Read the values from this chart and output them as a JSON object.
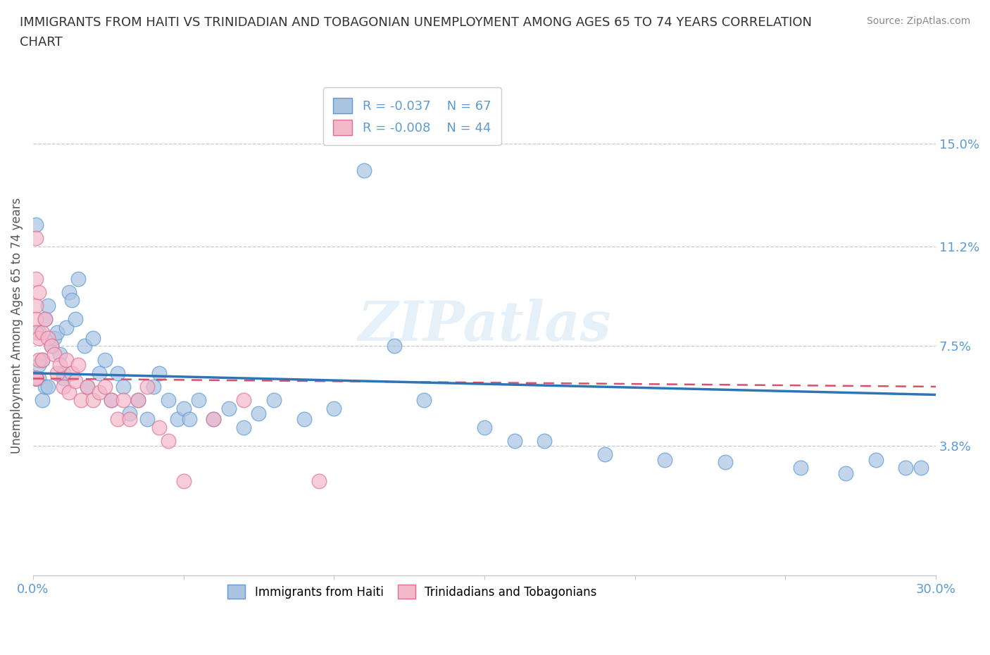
{
  "title": "IMMIGRANTS FROM HAITI VS TRINIDADIAN AND TOBAGONIAN UNEMPLOYMENT AMONG AGES 65 TO 74 YEARS CORRELATION\nCHART",
  "source": "Source: ZipAtlas.com",
  "ylabel": "Unemployment Among Ages 65 to 74 years",
  "xlim": [
    0.0,
    0.3
  ],
  "ylim": [
    -0.01,
    0.175
  ],
  "xticks": [
    0.0,
    0.05,
    0.1,
    0.15,
    0.2,
    0.25,
    0.3
  ],
  "ytick_positions": [
    0.038,
    0.075,
    0.112,
    0.15
  ],
  "ytick_labels": [
    "3.8%",
    "7.5%",
    "11.2%",
    "15.0%"
  ],
  "haiti_color": "#aac4e2",
  "haiti_edge_color": "#5b9bd5",
  "tnt_color": "#f4b8cb",
  "tnt_edge_color": "#e07090",
  "trend_haiti_color": "#2e75b6",
  "trend_tnt_color": "#d94f6e",
  "watermark": "ZIPatlas",
  "legend_haiti_r": "R = -0.037",
  "legend_haiti_n": "N = 67",
  "legend_tnt_r": "R = -0.008",
  "legend_tnt_n": "N = 44",
  "haiti_x": [
    0.001,
    0.001,
    0.001,
    0.001,
    0.001,
    0.001,
    0.001,
    0.001,
    0.002,
    0.002,
    0.002,
    0.003,
    0.003,
    0.004,
    0.004,
    0.005,
    0.005,
    0.006,
    0.007,
    0.008,
    0.009,
    0.01,
    0.01,
    0.011,
    0.012,
    0.013,
    0.014,
    0.015,
    0.017,
    0.018,
    0.02,
    0.022,
    0.024,
    0.026,
    0.028,
    0.03,
    0.032,
    0.035,
    0.038,
    0.04,
    0.042,
    0.045,
    0.048,
    0.05,
    0.052,
    0.055,
    0.06,
    0.065,
    0.07,
    0.075,
    0.08,
    0.09,
    0.1,
    0.11,
    0.12,
    0.13,
    0.15,
    0.16,
    0.17,
    0.19,
    0.21,
    0.23,
    0.255,
    0.27,
    0.28,
    0.29,
    0.295
  ],
  "haiti_y": [
    0.063,
    0.063,
    0.063,
    0.063,
    0.063,
    0.063,
    0.063,
    0.12,
    0.063,
    0.068,
    0.08,
    0.055,
    0.07,
    0.06,
    0.085,
    0.09,
    0.06,
    0.075,
    0.078,
    0.08,
    0.072,
    0.063,
    0.065,
    0.082,
    0.095,
    0.092,
    0.085,
    0.1,
    0.075,
    0.06,
    0.078,
    0.065,
    0.07,
    0.055,
    0.065,
    0.06,
    0.05,
    0.055,
    0.048,
    0.06,
    0.065,
    0.055,
    0.048,
    0.052,
    0.048,
    0.055,
    0.048,
    0.052,
    0.045,
    0.05,
    0.055,
    0.048,
    0.052,
    0.14,
    0.075,
    0.055,
    0.045,
    0.04,
    0.04,
    0.035,
    0.033,
    0.032,
    0.03,
    0.028,
    0.033,
    0.03,
    0.03
  ],
  "tnt_x": [
    0.001,
    0.001,
    0.001,
    0.001,
    0.001,
    0.001,
    0.001,
    0.001,
    0.001,
    0.001,
    0.002,
    0.002,
    0.002,
    0.003,
    0.003,
    0.004,
    0.005,
    0.006,
    0.007,
    0.008,
    0.009,
    0.01,
    0.011,
    0.012,
    0.013,
    0.014,
    0.015,
    0.016,
    0.018,
    0.02,
    0.022,
    0.024,
    0.026,
    0.028,
    0.03,
    0.032,
    0.035,
    0.038,
    0.042,
    0.045,
    0.05,
    0.06,
    0.07,
    0.095
  ],
  "tnt_y": [
    0.063,
    0.063,
    0.063,
    0.063,
    0.063,
    0.115,
    0.1,
    0.09,
    0.085,
    0.08,
    0.078,
    0.07,
    0.095,
    0.07,
    0.08,
    0.085,
    0.078,
    0.075,
    0.072,
    0.065,
    0.068,
    0.06,
    0.07,
    0.058,
    0.065,
    0.062,
    0.068,
    0.055,
    0.06,
    0.055,
    0.058,
    0.06,
    0.055,
    0.048,
    0.055,
    0.048,
    0.055,
    0.06,
    0.045,
    0.04,
    0.025,
    0.048,
    0.055,
    0.025
  ],
  "trend_haiti_x0": 0.0,
  "trend_haiti_y0": 0.065,
  "trend_haiti_x1": 0.3,
  "trend_haiti_y1": 0.057,
  "trend_tnt_x0": 0.0,
  "trend_tnt_y0": 0.063,
  "trend_tnt_x1": 0.3,
  "trend_tnt_y1": 0.06
}
